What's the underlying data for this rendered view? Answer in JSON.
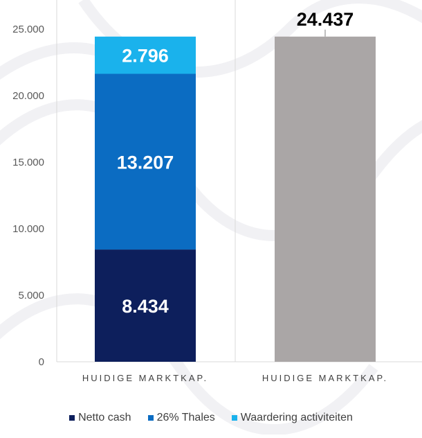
{
  "chart_data": {
    "type": "bar",
    "stacked": true,
    "categories": [
      "HUIDIGE MARKTKAP.",
      "HUIDIGE MARKTKAP."
    ],
    "ylim": [
      0,
      25000
    ],
    "yticks": [
      0,
      5000,
      10000,
      15000,
      20000,
      25000
    ],
    "ytick_labels": [
      "0",
      "5.000",
      "10.000",
      "15.000",
      "20.000",
      "25.000"
    ],
    "series": [
      {
        "name": "Netto cash",
        "color": "#0d1f5c",
        "values": [
          8434,
          null
        ],
        "labels": [
          "8.434",
          ""
        ]
      },
      {
        "name": "26% Thales",
        "color": "#0b6cc2",
        "values": [
          13207,
          null
        ],
        "labels": [
          "13.207",
          ""
        ]
      },
      {
        "name": "Waardering activiteiten",
        "color": "#1ab2ec",
        "values": [
          2796,
          null
        ],
        "labels": [
          "2.796",
          ""
        ]
      },
      {
        "name": "",
        "color": "#aaa6a6",
        "values": [
          null,
          24437
        ],
        "labels": [
          "",
          ""
        ]
      }
    ],
    "totals": [
      {
        "category_index": 1,
        "value": 24437,
        "label": "24.437"
      }
    ],
    "legend": [
      {
        "name": "Netto cash",
        "color": "#0d1f5c"
      },
      {
        "name": "26% Thales",
        "color": "#0b6cc2"
      },
      {
        "name": "Waardering activiteiten",
        "color": "#1ab2ec"
      }
    ],
    "legend_position": "bottom",
    "grid": false,
    "title": "",
    "xlabel": "",
    "ylabel": ""
  }
}
